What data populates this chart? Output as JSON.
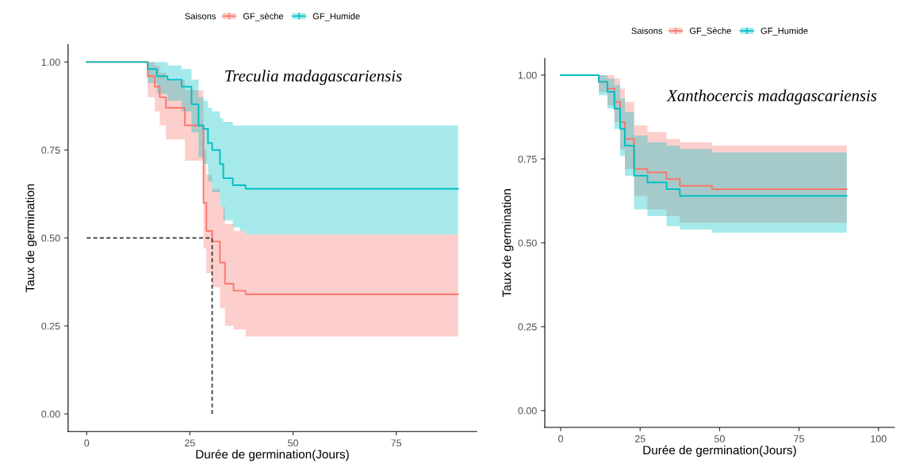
{
  "chart_data": [
    {
      "type": "step",
      "xlabel": "Durée de germination(Jours)",
      "ylabel": "Taux de germination",
      "legend_title": "Saisons",
      "legend": "top",
      "grid": false,
      "xlim": [
        -4.5,
        94.5
      ],
      "xticks": [
        0,
        25,
        50,
        75
      ],
      "ylim": [
        -0.05,
        1.05
      ],
      "yticks": [
        {
          "value": 0,
          "label": "0.00"
        },
        {
          "value": 0.25,
          "label": "0.25"
        },
        {
          "value": 0.5,
          "label": "0.50"
        },
        {
          "value": 0.75,
          "label": "0.75"
        },
        {
          "value": 1,
          "label": "1.00"
        }
      ],
      "annotations": [
        "Treculia madagascariensis"
      ],
      "ref_lines": [
        {
          "axis": "y",
          "value": 0.5,
          "label": null,
          "line_style": "dashed"
        },
        {
          "axis": "x",
          "value": 30.4,
          "label": null,
          "line_style": "dashed"
        }
      ],
      "series": [
        {
          "name": "GF_sèche",
          "color": "#f8766d",
          "x": [
            0,
            14.8,
            16.5,
            17.7,
            19.2,
            23.8,
            28.3,
            29.0,
            30.4,
            32.3,
            33.5,
            35.6,
            38.5,
            90
          ],
          "values": [
            1,
            0.96,
            0.93,
            0.9,
            0.87,
            0.82,
            0.6,
            0.52,
            0.49,
            0.43,
            0.37,
            0.35,
            0.34,
            0.34
          ],
          "upper": [
            1,
            1,
            0.99,
            0.97,
            0.95,
            0.92,
            0.75,
            0.68,
            0.64,
            0.59,
            0.54,
            0.52,
            0.51,
            0.51
          ],
          "lower": [
            1,
            0.9,
            0.86,
            0.82,
            0.78,
            0.72,
            0.47,
            0.4,
            0.36,
            0.3,
            0.25,
            0.24,
            0.22,
            0.22
          ]
        },
        {
          "name": "GF_Humide",
          "color": "#00bfc4",
          "x": [
            0,
            14.8,
            17,
            19.6,
            23,
            25.4,
            27.1,
            28.3,
            29.4,
            30.4,
            32.3,
            33.1,
            35.4,
            37.1,
            38.5,
            90
          ],
          "values": [
            1,
            0.98,
            0.96,
            0.95,
            0.93,
            0.88,
            0.82,
            0.81,
            0.77,
            0.75,
            0.71,
            0.67,
            0.65,
            0.65,
            0.64,
            0.64
          ],
          "upper": [
            1,
            1,
            1,
            0.99,
            0.98,
            0.95,
            0.9,
            0.89,
            0.87,
            0.86,
            0.84,
            0.83,
            0.82,
            0.82,
            0.82,
            0.82
          ],
          "lower": [
            1,
            0.94,
            0.91,
            0.89,
            0.86,
            0.8,
            0.73,
            0.71,
            0.66,
            0.63,
            0.59,
            0.55,
            0.53,
            0.52,
            0.51,
            0.51
          ]
        }
      ]
    },
    {
      "type": "step",
      "xlabel": "Durée de germination(Jours)",
      "ylabel": "Taux de germination",
      "legend_title": "Saisons",
      "legend": "top",
      "grid": false,
      "xlim": [
        -5,
        105
      ],
      "xticks": [
        0,
        25,
        50,
        75,
        100
      ],
      "ylim": [
        -0.05,
        1.05
      ],
      "yticks": [
        {
          "value": 0,
          "label": "0.00"
        },
        {
          "value": 0.25,
          "label": "0.25"
        },
        {
          "value": 0.5,
          "label": "0.50"
        },
        {
          "value": 0.75,
          "label": "0.75"
        },
        {
          "value": 1,
          "label": "1.00"
        }
      ],
      "annotations": [
        "Xanthocercis madagascariensis"
      ],
      "series": [
        {
          "name": "GF_Sèche",
          "color": "#f8766d",
          "x": [
            0,
            12,
            14.7,
            16.9,
            18.7,
            20.2,
            23.1,
            27.3,
            33.3,
            37.5,
            47.6,
            90
          ],
          "values": [
            1,
            0.98,
            0.96,
            0.92,
            0.86,
            0.81,
            0.72,
            0.71,
            0.69,
            0.67,
            0.66,
            0.66
          ],
          "upper": [
            1,
            1,
            1,
            0.99,
            0.96,
            0.92,
            0.85,
            0.83,
            0.81,
            0.8,
            0.79,
            0.79
          ],
          "lower": [
            1,
            0.95,
            0.91,
            0.86,
            0.78,
            0.72,
            0.64,
            0.6,
            0.58,
            0.56,
            0.56,
            0.56
          ]
        },
        {
          "name": "GF_Humide",
          "color": "#00bfc4",
          "x": [
            0,
            12,
            14.7,
            16.9,
            18.7,
            20.2,
            23.1,
            27.3,
            33.3,
            37.5,
            47.6,
            90
          ],
          "values": [
            1,
            0.98,
            0.95,
            0.9,
            0.84,
            0.79,
            0.7,
            0.68,
            0.66,
            0.64,
            0.64,
            0.64
          ],
          "upper": [
            1,
            1,
            0.99,
            0.97,
            0.93,
            0.89,
            0.82,
            0.8,
            0.79,
            0.78,
            0.77,
            0.77
          ],
          "lower": [
            1,
            0.94,
            0.9,
            0.84,
            0.76,
            0.7,
            0.6,
            0.58,
            0.55,
            0.54,
            0.53,
            0.53
          ]
        }
      ]
    }
  ]
}
